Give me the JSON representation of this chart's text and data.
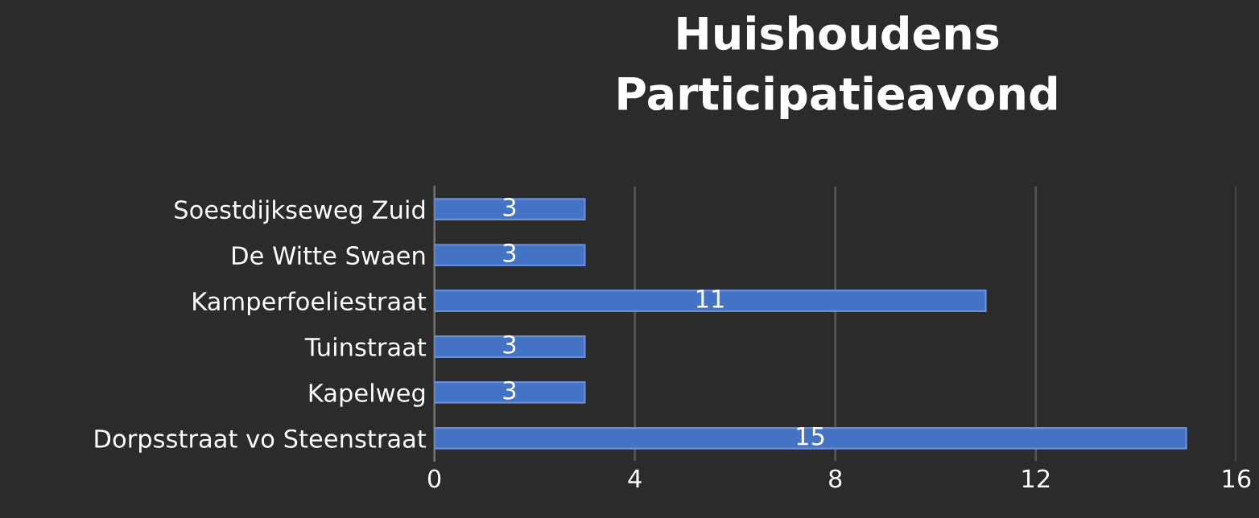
{
  "chart_data": {
    "type": "bar",
    "orientation": "horizontal",
    "title": "Huishoudens\nParticipatieavond",
    "categories": [
      "Soestdijkseweg Zuid",
      "De Witte Swaen",
      "Kamperfoeliestraat",
      "Tuinstraat",
      "Kapelweg",
      "Dorpsstraat vo Steenstraat"
    ],
    "values": [
      3,
      3,
      11,
      3,
      3,
      15
    ],
    "color": "#4472c4",
    "xlim": [
      0,
      16
    ],
    "xticks": [
      0,
      4,
      8,
      12,
      16
    ],
    "grid": "x",
    "data_labels": true,
    "legend": false
  }
}
